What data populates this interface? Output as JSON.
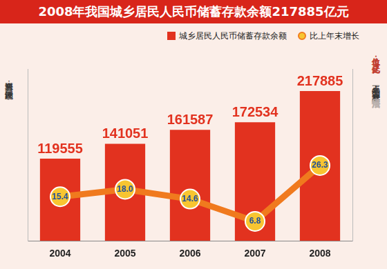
{
  "chart_data": {
    "type": "bar",
    "title": "2008年我国城乡居民人民币储蓄存款余额217885亿元",
    "categories": [
      "2004",
      "2005",
      "2006",
      "2007",
      "2008"
    ],
    "series": [
      {
        "name": "城乡居民人民币储蓄存款余额",
        "type": "bar",
        "color": "#e2321f",
        "values": [
          119555,
          141051,
          161587,
          172534,
          217885
        ]
      },
      {
        "name": "比上年末增长",
        "type": "line",
        "axis": "y2",
        "color": "#f07a1e",
        "marker": "circle",
        "values": [
          15.4,
          18.0,
          14.6,
          6.8,
          26.3
        ],
        "value_labels": [
          "15.4",
          "18.0",
          "14.6",
          "6.8",
          "26.3"
        ]
      }
    ],
    "ylim": [
      0,
      250000
    ],
    "y2lim": [
      0,
      60
    ],
    "units": [
      "单位：亿元",
      "%"
    ],
    "source": "资料来源：国家统计局",
    "credits": [
      "王永卓 编制",
      "新华社发"
    ],
    "watermark": "法治日报",
    "legend": "top-right",
    "data_labels": true,
    "tick_labels": "x",
    "grid": false
  }
}
